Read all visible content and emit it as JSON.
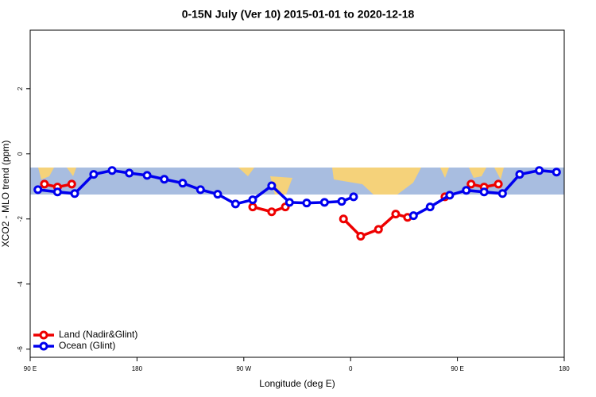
{
  "chart_data": {
    "type": "line",
    "title": "0-15N July (Ver 10)   2015-01-01 to 2020-12-18",
    "xlabel": "Longitude (deg E)",
    "ylabel": "XCO2 - MLO trend (ppm)",
    "xlim": [
      90,
      540
    ],
    "ylim": [
      -6.25,
      3.8
    ],
    "xticks": [
      {
        "value": 90,
        "label": "90 E"
      },
      180,
      {
        "value": 270,
        "label": "90 W"
      },
      {
        "value": 360,
        "label": "0"
      },
      {
        "value": 450,
        "label": "90 E"
      },
      {
        "value": 540,
        "label": "180"
      }
    ],
    "yticks": [
      -6,
      -4,
      -2,
      0,
      2
    ],
    "grid": false,
    "legend": "bottom-left",
    "series": [
      {
        "name": "Land (Nadir&Glint)",
        "color": "#ee0000",
        "x": [
          102,
          113,
          125,
          null,
          277.5,
          293.5,
          305,
          null,
          354,
          368.5,
          383.5,
          398,
          408,
          null,
          439.5,
          null,
          461.5,
          472.5,
          484.5
        ],
        "values": [
          -0.93,
          -1.02,
          -0.93,
          null,
          -1.63,
          -1.78,
          -1.63,
          null,
          -2.0,
          -2.53,
          -2.32,
          -1.85,
          -1.95,
          null,
          -1.32,
          null,
          -0.93,
          -1.02,
          -0.93
        ]
      },
      {
        "name": "Ocean (Glint)",
        "color": "#0000ee",
        "x": [
          96.5,
          113,
          127.5,
          143.5,
          159,
          173.5,
          188.5,
          203,
          218.5,
          233.5,
          248,
          263,
          277.5,
          293.5,
          308.5,
          323,
          338,
          352.5,
          362.5,
          null,
          413,
          427,
          443.5,
          457.5,
          472.5,
          488,
          502.5,
          519,
          533.5
        ],
        "values": [
          -1.1,
          -1.17,
          -1.22,
          -0.63,
          -0.51,
          -0.59,
          -0.66,
          -0.78,
          -0.9,
          -1.1,
          -1.24,
          -1.54,
          -1.41,
          -0.98,
          -1.49,
          -1.51,
          -1.49,
          -1.46,
          -1.32,
          null,
          -1.9,
          -1.63,
          -1.27,
          -1.12,
          -1.17,
          -1.22,
          -0.63,
          -0.51,
          -0.56
        ]
      }
    ]
  }
}
